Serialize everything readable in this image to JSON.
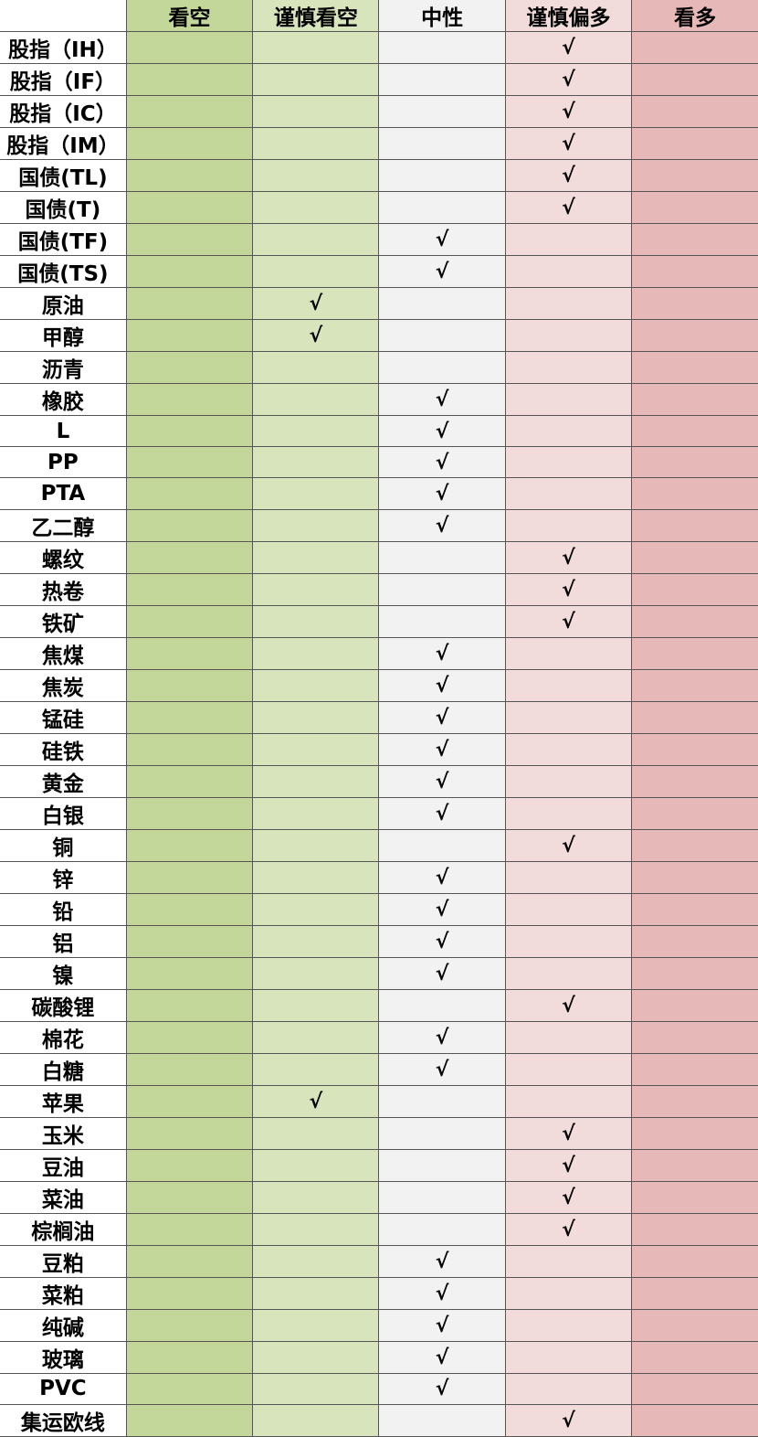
{
  "columns": [
    "看空",
    "谨慎看空",
    "中性",
    "谨慎偏多",
    "看多"
  ],
  "column_colors": [
    "#c4d79b",
    "#d8e4bc",
    "#f2f2f2",
    "#f2dcdb",
    "#e6b8b7"
  ],
  "check_mark": "√",
  "rows": [
    {
      "name": "股指（IH）",
      "stance": "谨慎偏多"
    },
    {
      "name": "股指（IF）",
      "stance": "谨慎偏多"
    },
    {
      "name": "股指（IC）",
      "stance": "谨慎偏多"
    },
    {
      "name": "股指（IM）",
      "stance": "谨慎偏多"
    },
    {
      "name": "国债(TL)",
      "stance": "谨慎偏多"
    },
    {
      "name": "国债(T)",
      "stance": "谨慎偏多"
    },
    {
      "name": "国债(TF)",
      "stance": "中性"
    },
    {
      "name": "国债(TS)",
      "stance": "中性"
    },
    {
      "name": "原油",
      "stance": "谨慎看空"
    },
    {
      "name": "甲醇",
      "stance": "谨慎看空"
    },
    {
      "name": "沥青",
      "stance": null
    },
    {
      "name": "橡胶",
      "stance": "中性"
    },
    {
      "name": "L",
      "stance": "中性"
    },
    {
      "name": "PP",
      "stance": "中性"
    },
    {
      "name": "PTA",
      "stance": "中性"
    },
    {
      "name": "乙二醇",
      "stance": "中性"
    },
    {
      "name": "螺纹",
      "stance": "谨慎偏多"
    },
    {
      "name": "热卷",
      "stance": "谨慎偏多"
    },
    {
      "name": "铁矿",
      "stance": "谨慎偏多"
    },
    {
      "name": "焦煤",
      "stance": "中性"
    },
    {
      "name": "焦炭",
      "stance": "中性"
    },
    {
      "name": "锰硅",
      "stance": "中性"
    },
    {
      "name": "硅铁",
      "stance": "中性"
    },
    {
      "name": "黄金",
      "stance": "中性"
    },
    {
      "name": "白银",
      "stance": "中性"
    },
    {
      "name": "铜",
      "stance": "谨慎偏多"
    },
    {
      "name": "锌",
      "stance": "中性"
    },
    {
      "name": "铅",
      "stance": "中性"
    },
    {
      "name": "铝",
      "stance": "中性"
    },
    {
      "name": "镍",
      "stance": "中性"
    },
    {
      "name": "碳酸锂",
      "stance": "谨慎偏多"
    },
    {
      "name": "棉花",
      "stance": "中性"
    },
    {
      "name": "白糖",
      "stance": "中性"
    },
    {
      "name": "苹果",
      "stance": "谨慎看空"
    },
    {
      "name": "玉米",
      "stance": "谨慎偏多"
    },
    {
      "name": "豆油",
      "stance": "谨慎偏多"
    },
    {
      "name": "菜油",
      "stance": "谨慎偏多"
    },
    {
      "name": "棕榈油",
      "stance": "谨慎偏多"
    },
    {
      "name": "豆粕",
      "stance": "中性"
    },
    {
      "name": "菜粕",
      "stance": "中性"
    },
    {
      "name": "纯碱",
      "stance": "中性"
    },
    {
      "name": "玻璃",
      "stance": "中性"
    },
    {
      "name": "PVC",
      "stance": "中性"
    },
    {
      "name": "集运欧线",
      "stance": "谨慎偏多"
    }
  ]
}
